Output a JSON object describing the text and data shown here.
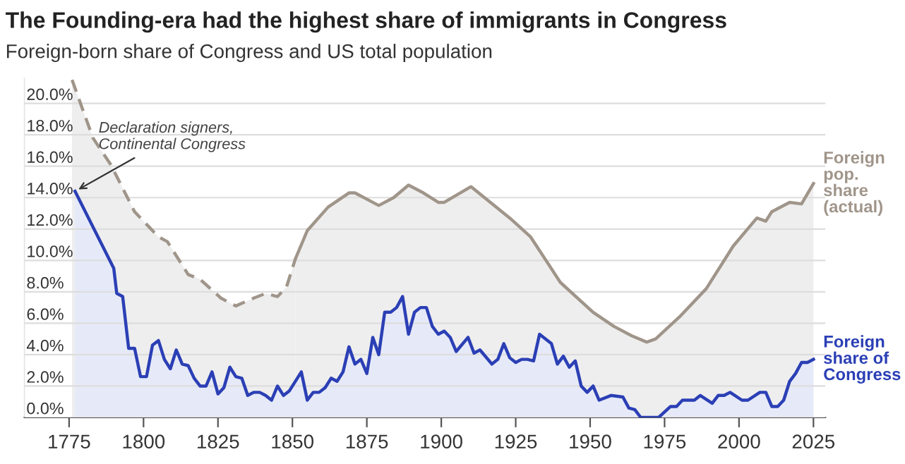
{
  "chart_data": {
    "type": "area",
    "title": "The Founding-era had the highest share of immigrants in Congress",
    "subtitle": "Foreign-born share of Congress and US total population",
    "xlim": [
      1760,
      2029
    ],
    "xticks": [
      1775,
      1800,
      1825,
      1850,
      1875,
      1900,
      1925,
      1950,
      1975,
      2000,
      2025
    ],
    "ylim": [
      0,
      21.6
    ],
    "yticks": [
      {
        "value": 0,
        "label": "0.0%"
      },
      {
        "value": 2,
        "label": "2.0%"
      },
      {
        "value": 4,
        "label": "4.0%"
      },
      {
        "value": 6,
        "label": "6.0%"
      },
      {
        "value": 8,
        "label": "8.0%"
      },
      {
        "value": 10,
        "label": "10.0%"
      },
      {
        "value": 12,
        "label": "12.0%"
      },
      {
        "value": 14,
        "label": "14.0%"
      },
      {
        "value": 16,
        "label": "16.0%"
      },
      {
        "value": 18,
        "label": "18.0%"
      },
      {
        "value": 20,
        "label": "20.0%"
      }
    ],
    "grid": "y",
    "legend": false,
    "marker": "none",
    "series": [
      {
        "color": "#a0958a",
        "line_style": "dashed",
        "x": [
          1776,
          1783,
          1789,
          1797,
          1805,
          1808,
          1815,
          1819,
          1826,
          1831,
          1837,
          1841,
          1845,
          1848,
          1851
        ],
        "values": [
          21.5,
          17.8,
          16.1,
          13.1,
          11.5,
          11.2,
          9.1,
          8.8,
          7.6,
          7.1,
          7.6,
          7.9,
          7.7,
          8.3,
          10.1
        ]
      },
      {
        "name": "Foreign\npop.\nshare\n(actual)",
        "color": "#a0958a",
        "line_style": "solid",
        "x": [
          1851,
          1855,
          1862,
          1869,
          1871,
          1879,
          1884,
          1889,
          1894,
          1899,
          1901,
          1910,
          1923,
          1930,
          1940,
          1951,
          1958,
          1964,
          1969,
          1972,
          1980,
          1989,
          1998,
          2006,
          2009,
          2011,
          2017,
          2021,
          2025
        ],
        "values": [
          10.1,
          11.9,
          13.4,
          14.3,
          14.3,
          13.5,
          14.0,
          14.8,
          14.3,
          13.7,
          13.7,
          14.7,
          12.7,
          11.5,
          8.6,
          6.7,
          5.8,
          5.2,
          4.8,
          5.0,
          6.4,
          8.2,
          10.9,
          12.7,
          12.5,
          13.1,
          13.7,
          13.6,
          14.9
        ]
      },
      {
        "name": "Foreign\nshare of\nCongress",
        "color": "#2b3fb5",
        "line_style": "solid",
        "x": [
          1777,
          1790,
          1791,
          1793,
          1795,
          1797,
          1799,
          1801,
          1803,
          1805,
          1807,
          1809,
          1811,
          1813,
          1815,
          1817,
          1819,
          1821,
          1823,
          1825,
          1827,
          1829,
          1831,
          1833,
          1835,
          1837,
          1839,
          1841,
          1843,
          1845,
          1847,
          1849,
          1853,
          1855,
          1857,
          1859,
          1861,
          1863,
          1865,
          1867,
          1869,
          1871,
          1873,
          1875,
          1877,
          1879,
          1881,
          1883,
          1885,
          1887,
          1889,
          1891,
          1893,
          1895,
          1897,
          1899,
          1901,
          1903,
          1905,
          1909,
          1911,
          1913,
          1917,
          1919,
          1921,
          1923,
          1925,
          1927,
          1929,
          1931,
          1933,
          1937,
          1939,
          1941,
          1943,
          1945,
          1947,
          1949,
          1951,
          1953,
          1957,
          1961,
          1963,
          1965,
          1967,
          1973,
          1977,
          1979,
          1981,
          1985,
          1987,
          1991,
          1993,
          1995,
          1997,
          2001,
          2003,
          2007,
          2009,
          2011,
          2013,
          2015,
          2017,
          2019,
          2021,
          2023,
          2025
        ],
        "values": [
          14.4,
          9.5,
          7.9,
          7.7,
          4.4,
          4.4,
          2.6,
          2.6,
          4.6,
          4.9,
          3.7,
          3.1,
          4.3,
          3.4,
          3.3,
          2.5,
          2.0,
          2.0,
          2.9,
          1.5,
          1.9,
          3.2,
          2.6,
          2.5,
          1.4,
          1.6,
          1.6,
          1.4,
          1.1,
          2.0,
          1.4,
          1.7,
          2.9,
          1.1,
          1.6,
          1.6,
          1.9,
          2.5,
          2.3,
          2.9,
          4.5,
          3.4,
          3.7,
          2.8,
          5.1,
          4.0,
          6.7,
          6.7,
          7.0,
          7.7,
          5.3,
          6.7,
          7.0,
          7.0,
          5.8,
          5.3,
          5.5,
          5.1,
          4.2,
          5.1,
          4.1,
          4.3,
          3.4,
          3.7,
          4.7,
          3.8,
          3.5,
          3.7,
          3.7,
          3.6,
          5.3,
          4.7,
          3.4,
          3.9,
          3.2,
          3.6,
          2.0,
          1.6,
          2.0,
          1.1,
          1.4,
          1.3,
          0.6,
          0.5,
          0.0,
          0.0,
          0.7,
          0.7,
          1.1,
          1.1,
          1.4,
          0.9,
          1.4,
          1.4,
          1.6,
          1.1,
          1.1,
          1.6,
          1.6,
          0.7,
          0.7,
          1.1,
          2.3,
          2.8,
          3.5,
          3.5,
          3.7
        ]
      }
    ],
    "annotations": [
      {
        "text": "Declaration signers,\nContinental Congress",
        "x": 1777,
        "y": 14.4
      }
    ]
  }
}
